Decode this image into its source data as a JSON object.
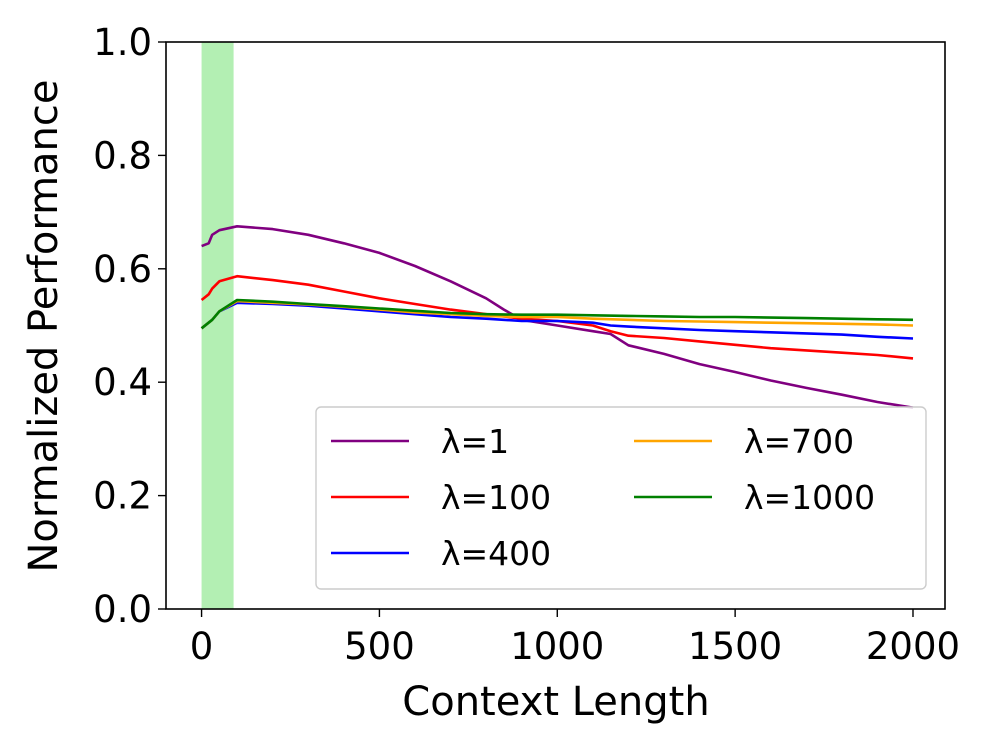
{
  "chart_data": {
    "type": "line",
    "title": "",
    "xlabel": "Context Length",
    "ylabel": "Normalized Performance",
    "xlim": [
      -100,
      2090
    ],
    "ylim": [
      0.0,
      1.0
    ],
    "xticks": [
      0,
      500,
      1000,
      1500,
      2000
    ],
    "xtick_labels": [
      "0",
      "500",
      "1000",
      "1500",
      "2000"
    ],
    "yticks": [
      0.0,
      0.2,
      0.4,
      0.6,
      0.8,
      1.0
    ],
    "ytick_labels": [
      "0.0",
      "0.2",
      "0.4",
      "0.6",
      "0.8",
      "1.0"
    ],
    "grid": false,
    "legend_position": "lower-right",
    "shaded_region": {
      "x": [
        0,
        90
      ],
      "color": "#b3efb3"
    },
    "series": [
      {
        "name": "λ=1",
        "color": "#800080",
        "x": [
          0,
          20,
          30,
          50,
          100,
          200,
          300,
          400,
          500,
          600,
          700,
          800,
          850,
          900,
          1000,
          1100,
          1150,
          1200,
          1300,
          1400,
          1500,
          1600,
          1700,
          1800,
          1900,
          2000
        ],
        "y": [
          0.64,
          0.645,
          0.66,
          0.668,
          0.675,
          0.67,
          0.66,
          0.645,
          0.628,
          0.605,
          0.578,
          0.548,
          0.528,
          0.51,
          0.5,
          0.49,
          0.485,
          0.465,
          0.45,
          0.432,
          0.418,
          0.403,
          0.39,
          0.378,
          0.365,
          0.355
        ]
      },
      {
        "name": "λ=100",
        "color": "#ff0000",
        "x": [
          0,
          20,
          30,
          50,
          100,
          200,
          300,
          400,
          500,
          600,
          700,
          800,
          900,
          1000,
          1100,
          1150,
          1200,
          1300,
          1400,
          1500,
          1600,
          1700,
          1800,
          1900,
          2000
        ],
        "y": [
          0.545,
          0.555,
          0.565,
          0.578,
          0.587,
          0.58,
          0.572,
          0.56,
          0.548,
          0.538,
          0.528,
          0.52,
          0.512,
          0.508,
          0.5,
          0.49,
          0.482,
          0.478,
          0.472,
          0.466,
          0.46,
          0.456,
          0.452,
          0.448,
          0.442
        ]
      },
      {
        "name": "λ=400",
        "color": "#0000ff",
        "x": [
          0,
          30,
          50,
          100,
          200,
          300,
          400,
          500,
          600,
          700,
          800,
          900,
          1000,
          1100,
          1150,
          1200,
          1300,
          1400,
          1500,
          1600,
          1700,
          1800,
          1900,
          2000
        ],
        "y": [
          0.495,
          0.51,
          0.525,
          0.54,
          0.538,
          0.535,
          0.53,
          0.525,
          0.52,
          0.515,
          0.512,
          0.508,
          0.508,
          0.505,
          0.5,
          0.498,
          0.495,
          0.492,
          0.49,
          0.488,
          0.486,
          0.484,
          0.48,
          0.477
        ]
      },
      {
        "name": "λ=700",
        "color": "#ffa500",
        "x": [
          0,
          30,
          50,
          100,
          200,
          300,
          400,
          500,
          600,
          700,
          800,
          900,
          1000,
          1100,
          1200,
          1300,
          1400,
          1500,
          1600,
          1700,
          1800,
          1900,
          2000
        ],
        "y": [
          0.495,
          0.51,
          0.525,
          0.543,
          0.54,
          0.537,
          0.533,
          0.528,
          0.523,
          0.52,
          0.517,
          0.515,
          0.515,
          0.512,
          0.51,
          0.508,
          0.507,
          0.506,
          0.505,
          0.504,
          0.503,
          0.502,
          0.5
        ]
      },
      {
        "name": "λ=1000",
        "color": "#008000",
        "x": [
          0,
          30,
          50,
          100,
          200,
          300,
          400,
          500,
          600,
          700,
          800,
          900,
          1000,
          1100,
          1200,
          1300,
          1400,
          1500,
          1600,
          1700,
          1800,
          1900,
          2000
        ],
        "y": [
          0.495,
          0.51,
          0.525,
          0.545,
          0.542,
          0.538,
          0.534,
          0.53,
          0.526,
          0.522,
          0.52,
          0.519,
          0.519,
          0.518,
          0.517,
          0.516,
          0.515,
          0.515,
          0.514,
          0.513,
          0.512,
          0.511,
          0.51
        ]
      }
    ]
  }
}
